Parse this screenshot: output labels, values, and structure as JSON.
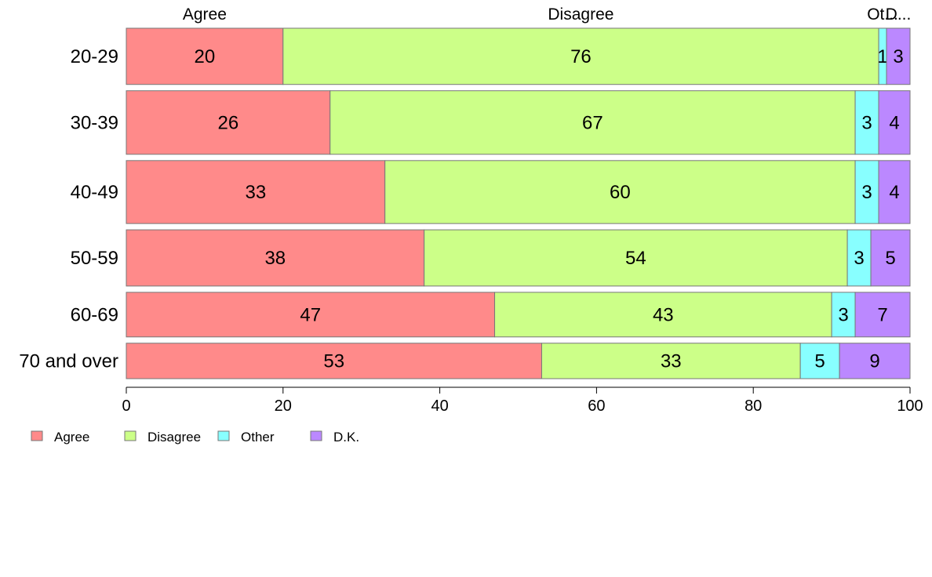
{
  "chart_data": {
    "type": "bar",
    "orientation": "horizontal",
    "stacked": true,
    "categories": [
      "20-29",
      "30-39",
      "40-49",
      "50-59",
      "60-69",
      "70 and over"
    ],
    "series": [
      {
        "name": "Agree",
        "color": "#ff8a8a",
        "values": [
          20,
          26,
          33,
          38,
          47,
          53
        ]
      },
      {
        "name": "Disagree",
        "color": "#ccff88",
        "values": [
          76,
          67,
          60,
          54,
          43,
          33
        ]
      },
      {
        "name": "Other",
        "color": "#88ffff",
        "values": [
          1,
          3,
          3,
          3,
          3,
          5
        ]
      },
      {
        "name": "D.K.",
        "color": "#bb88ff",
        "values": [
          3,
          4,
          4,
          5,
          7,
          9
        ]
      }
    ],
    "value_labels": [
      [
        "20",
        "76",
        "1",
        "3"
      ],
      [
        "26",
        "67",
        "3",
        "4"
      ],
      [
        "33",
        "60",
        "3",
        "4"
      ],
      [
        "38",
        "54",
        "3",
        "5"
      ],
      [
        "47",
        "43",
        "3",
        "7"
      ],
      [
        "53",
        "33",
        "5",
        "9"
      ]
    ],
    "top_labels": [
      "Agree",
      "Disagree",
      "Ot...",
      "D..."
    ],
    "xlim": [
      0,
      100
    ],
    "x_ticks": [
      0,
      20,
      40,
      60,
      80,
      100
    ],
    "x_tick_labels": [
      "0",
      "20",
      "40",
      "60",
      "80",
      "100"
    ],
    "bar_widths_relative": [
      0.92,
      1.04,
      1.03,
      0.92,
      0.73,
      0.58
    ],
    "legend": {
      "position": "bottom-left",
      "labels": [
        "Agree",
        "Disagree",
        "Other",
        "D.K."
      ]
    },
    "grid": false
  }
}
